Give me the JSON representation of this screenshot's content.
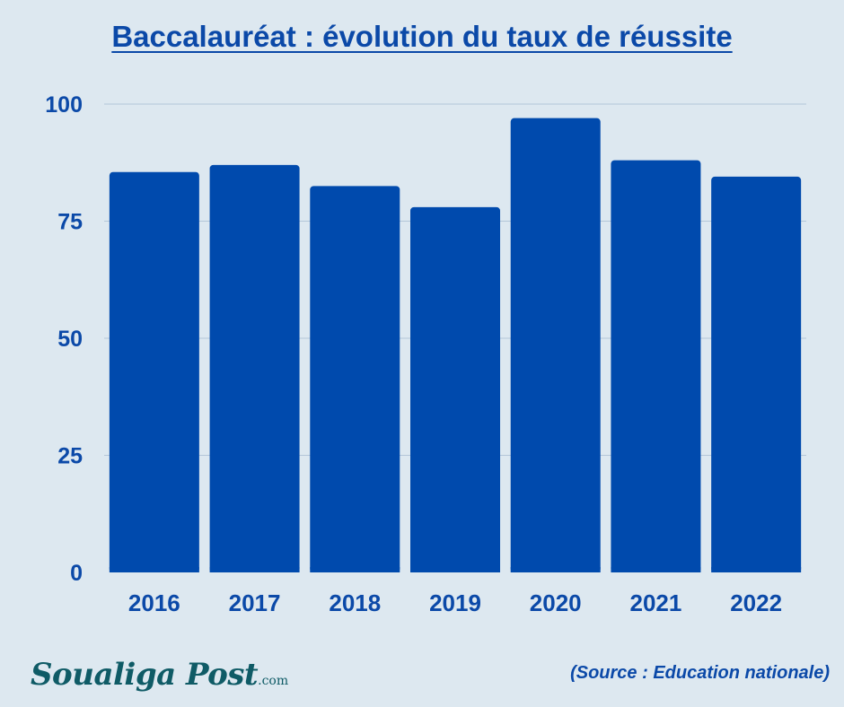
{
  "title": "Baccalauréat : évolution du taux de réussite",
  "footer": {
    "brand": "Soualiga Post",
    "brand_suffix": ".com",
    "source": "(Source : Education nationale)"
  },
  "colors": {
    "background": "#dde8f0",
    "bar": "#004aad",
    "text": "#0b49a8",
    "gridline": "#b4c6d8",
    "brand": "#0f5b66"
  },
  "chart_data": {
    "type": "bar",
    "title": "Baccalauréat : évolution du taux de réussite",
    "xlabel": "",
    "ylabel": "",
    "categories": [
      "2016",
      "2017",
      "2018",
      "2019",
      "2020",
      "2021",
      "2022"
    ],
    "values": [
      85.5,
      87,
      82.5,
      78,
      97,
      88,
      84.5
    ],
    "ylim": [
      0,
      100
    ],
    "yticks": [
      0,
      25,
      50,
      75,
      100
    ],
    "grid": true,
    "legend": "none"
  }
}
